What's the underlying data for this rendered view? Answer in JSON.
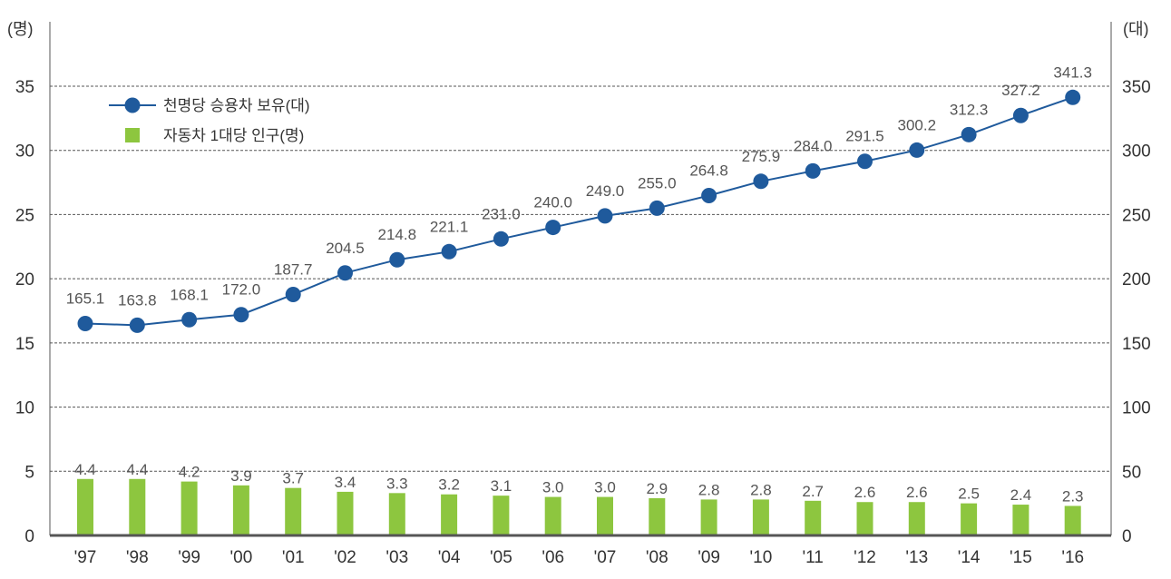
{
  "chart_data": {
    "type": "bar+line",
    "categories": [
      "'97",
      "'98",
      "'99",
      "'00",
      "'01",
      "'02",
      "'03",
      "'04",
      "'05",
      "'06",
      "'07",
      "'08",
      "'09",
      "'10",
      "'11",
      "'12",
      "'13",
      "'14",
      "'15",
      "'16"
    ],
    "series": [
      {
        "name": "천명당 승용차 보유(대)",
        "type": "line",
        "axis": "right",
        "color": "#1f5a9c",
        "values": [
          165.1,
          163.8,
          168.1,
          172.0,
          187.7,
          204.5,
          214.8,
          221.1,
          231.0,
          240.0,
          249.0,
          255.0,
          264.8,
          275.9,
          284.0,
          291.5,
          300.2,
          312.3,
          327.2,
          341.3
        ],
        "labels": [
          "165.1",
          "163.8",
          "168.1",
          "172.0",
          "187.7",
          "204.5",
          "214.8",
          "221.1",
          "231.0",
          "240.0",
          "249.0",
          "255.0",
          "264.8",
          "275.9",
          "284.0",
          "291.5",
          "300.2",
          "312.3",
          "327.2",
          "341.3"
        ]
      },
      {
        "name": "자동차 1대당 인구(명)",
        "type": "bar",
        "axis": "left",
        "color": "#8dc63f",
        "values": [
          4.4,
          4.4,
          4.2,
          3.9,
          3.7,
          3.4,
          3.3,
          3.2,
          3.1,
          3.0,
          3.0,
          2.9,
          2.8,
          2.8,
          2.7,
          2.6,
          2.6,
          2.5,
          2.4,
          2.3
        ],
        "labels": [
          "4.4",
          "4.4",
          "4.2",
          "3.9",
          "3.7",
          "3.4",
          "3.3",
          "3.2",
          "3.1",
          "3.0",
          "3.0",
          "2.9",
          "2.8",
          "2.8",
          "2.7",
          "2.6",
          "2.6",
          "2.5",
          "2.4",
          "2.3"
        ]
      }
    ],
    "left_axis": {
      "unit": "(명)",
      "ylim": [
        0,
        40
      ],
      "ticks": [
        "0",
        "5",
        "10",
        "15",
        "20",
        "25",
        "30",
        "35"
      ]
    },
    "right_axis": {
      "unit": "(대)",
      "ylim": [
        0,
        400
      ],
      "ticks": [
        "0",
        "50",
        "100",
        "150",
        "200",
        "250",
        "300",
        "350"
      ]
    },
    "grid": true,
    "legend_position": "top-left",
    "colors": {
      "axis": "#555555",
      "grid": "#555555",
      "text": "#333333"
    }
  }
}
